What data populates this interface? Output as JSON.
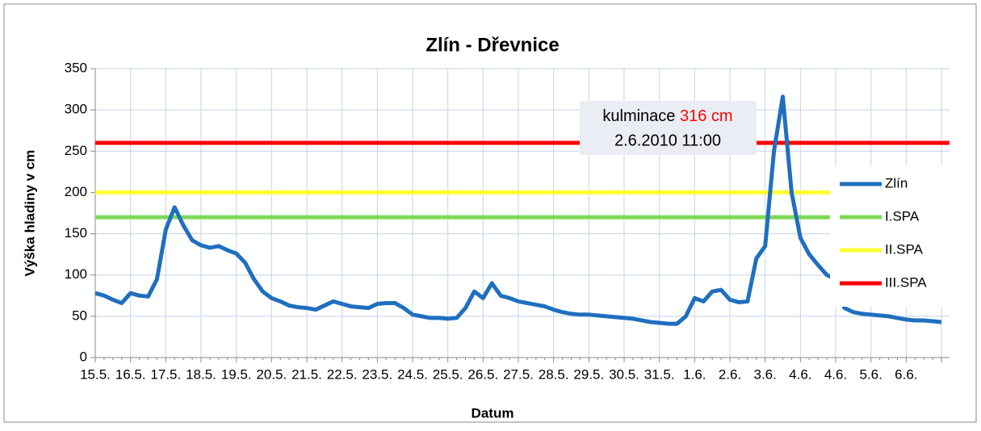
{
  "chart_data": {
    "type": "line",
    "title": "Zlín - Dřevnice",
    "xlabel": "Datum",
    "ylabel": "Výška hladiny v cm",
    "categories": [
      "15.5.",
      null,
      null,
      null,
      "16.5.",
      null,
      null,
      null,
      "17.5.",
      null,
      null,
      null,
      "18.5.",
      null,
      null,
      null,
      "19.5.",
      null,
      null,
      null,
      "20.5.",
      null,
      null,
      null,
      "21.5.",
      null,
      null,
      null,
      "22.5.",
      null,
      null,
      null,
      "23.5.",
      null,
      null,
      null,
      "24.5.",
      null,
      null,
      null,
      "25.5.",
      null,
      null,
      null,
      "26.5.",
      null,
      null,
      null,
      "27.5.",
      null,
      null,
      null,
      "28.5.",
      null,
      null,
      null,
      "29.5.",
      null,
      null,
      null,
      "30.5.",
      null,
      null,
      null,
      "31.5.",
      null,
      null,
      null,
      "1.6.",
      null,
      null,
      null,
      "2.6.",
      null,
      null,
      null,
      "3.6.",
      null,
      null,
      null,
      "4.6.",
      null,
      null,
      null,
      "4.6.",
      null,
      null,
      null,
      "5.6.",
      null,
      null,
      null,
      "6.6.",
      null,
      null,
      null,
      null
    ],
    "series": [
      {
        "name": "Zlín",
        "color": "#1f6fbf",
        "values": [
          78,
          75,
          70,
          66,
          78,
          75,
          74,
          95,
          155,
          182,
          160,
          142,
          136,
          133,
          135,
          130,
          126,
          115,
          95,
          80,
          72,
          68,
          63,
          61,
          60,
          58,
          63,
          68,
          65,
          62,
          61,
          60,
          65,
          66,
          66,
          60,
          52,
          50,
          48,
          48,
          47,
          48,
          60,
          80,
          72,
          90,
          75,
          72,
          68,
          66,
          64,
          62,
          58,
          55,
          53,
          52,
          52,
          51,
          50,
          49,
          48,
          47,
          45,
          43,
          42,
          41,
          41,
          50,
          72,
          68,
          80,
          82,
          70,
          67,
          68,
          120,
          135,
          250,
          316,
          200,
          145,
          125,
          112,
          100,
          95,
          60,
          55,
          53,
          52,
          51,
          50,
          48,
          46,
          45,
          45,
          44,
          43
        ]
      }
    ],
    "thresholds": [
      {
        "name": "I.SPA",
        "color": "#7ed957",
        "value": 170
      },
      {
        "name": "II.SPA",
        "color": "#ffff33",
        "value": 200
      },
      {
        "name": "III.SPA",
        "color": "#ff0000",
        "value": 260
      }
    ],
    "annotation": {
      "text": "kulminace",
      "highlight": "316 cm",
      "date": "2.6.2010 11:00"
    },
    "ylim": [
      0,
      350
    ],
    "yticks": [
      0,
      50,
      100,
      150,
      200,
      250,
      300,
      350
    ],
    "grid": true
  }
}
